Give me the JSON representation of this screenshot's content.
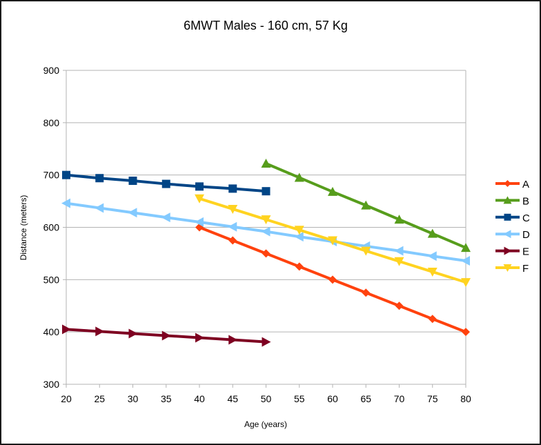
{
  "chart_data": {
    "type": "line",
    "title": "6MWT Males - 160 cm, 57 Kg",
    "xlabel": "Age (years)",
    "ylabel": "Distance (meters)",
    "xlim": [
      20,
      80
    ],
    "ylim": [
      300,
      900
    ],
    "x_ticks": [
      20,
      25,
      30,
      35,
      40,
      45,
      50,
      55,
      60,
      65,
      70,
      75,
      80
    ],
    "y_ticks": [
      300,
      400,
      500,
      600,
      700,
      800,
      900
    ],
    "grid": "horizontal",
    "legend_position": "right",
    "series": [
      {
        "name": "A",
        "color": "#FF420E",
        "marker": "diamond",
        "x": [
          40,
          45,
          50,
          55,
          60,
          65,
          70,
          75,
          80
        ],
        "values": [
          600,
          575,
          550,
          525,
          500,
          475,
          450,
          425,
          400
        ]
      },
      {
        "name": "B",
        "color": "#579D1C",
        "marker": "triangle-up",
        "x": [
          50,
          55,
          60,
          65,
          70,
          75,
          80
        ],
        "values": [
          722,
          695,
          668,
          642,
          615,
          588,
          561
        ]
      },
      {
        "name": "C",
        "color": "#004586",
        "marker": "square",
        "x": [
          20,
          25,
          30,
          35,
          40,
          45,
          50
        ],
        "values": [
          700,
          694,
          689,
          683,
          678,
          674,
          669
        ]
      },
      {
        "name": "D",
        "color": "#83CAFF",
        "marker": "triangle-left",
        "x": [
          20,
          25,
          30,
          35,
          40,
          45,
          50,
          55,
          60,
          65,
          70,
          75,
          80
        ],
        "values": [
          646,
          637,
          628,
          619,
          610,
          601,
          592,
          582,
          573,
          564,
          555,
          545,
          536
        ]
      },
      {
        "name": "E",
        "color": "#7E0021",
        "marker": "triangle-right",
        "x": [
          20,
          25,
          30,
          35,
          40,
          45,
          50
        ],
        "values": [
          405,
          401,
          397,
          393,
          389,
          385,
          381
        ]
      },
      {
        "name": "F",
        "color": "#FFD320",
        "marker": "triangle-down",
        "x": [
          40,
          45,
          50,
          55,
          60,
          65,
          70,
          75,
          80
        ],
        "values": [
          655,
          635,
          615,
          595,
          575,
          555,
          535,
          515,
          495
        ]
      }
    ]
  }
}
